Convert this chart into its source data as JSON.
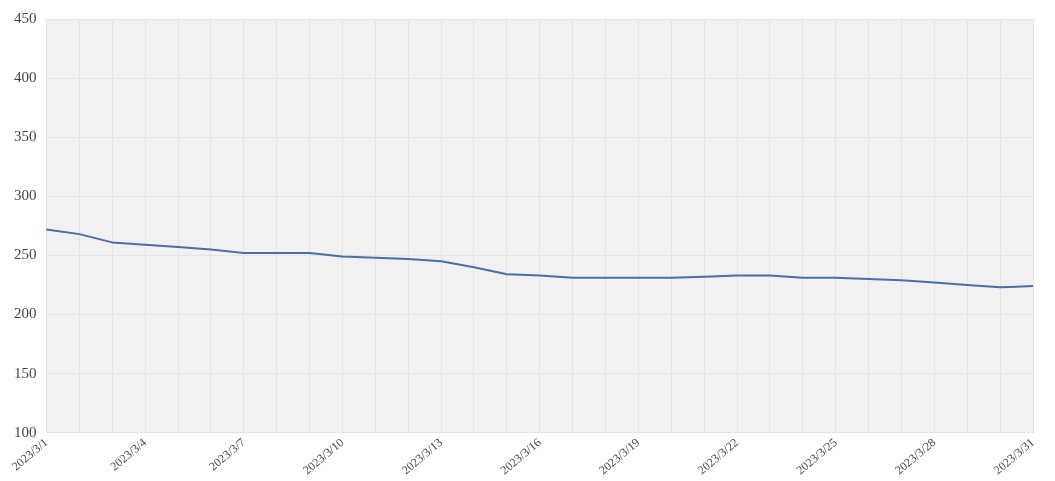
{
  "chart_data": {
    "type": "line",
    "categories": [
      "2023/3/1",
      null,
      null,
      "2023/3/4",
      null,
      null,
      "2023/3/7",
      null,
      null,
      "2023/3/10",
      null,
      null,
      "2023/3/13",
      null,
      null,
      "2023/3/16",
      null,
      null,
      "2023/3/19",
      null,
      null,
      "2023/3/22",
      null,
      null,
      "2023/3/25",
      null,
      null,
      "2023/3/28",
      null,
      null,
      "2023/3/31"
    ],
    "series": [
      {
        "color": "#4a6fa5",
        "values": [
          272,
          268,
          261,
          259,
          257,
          255,
          252,
          252,
          252,
          249,
          248,
          247,
          245,
          240,
          234,
          233,
          231,
          231,
          231,
          231,
          232,
          233,
          233,
          231,
          231,
          230,
          229,
          227,
          225,
          223,
          224
        ]
      }
    ],
    "ylim": [
      100,
      450
    ],
    "yticks": [
      100,
      150,
      200,
      250,
      300,
      350,
      400,
      450
    ],
    "grid": true,
    "legend": false,
    "marker": "none",
    "line_style": "solid"
  }
}
